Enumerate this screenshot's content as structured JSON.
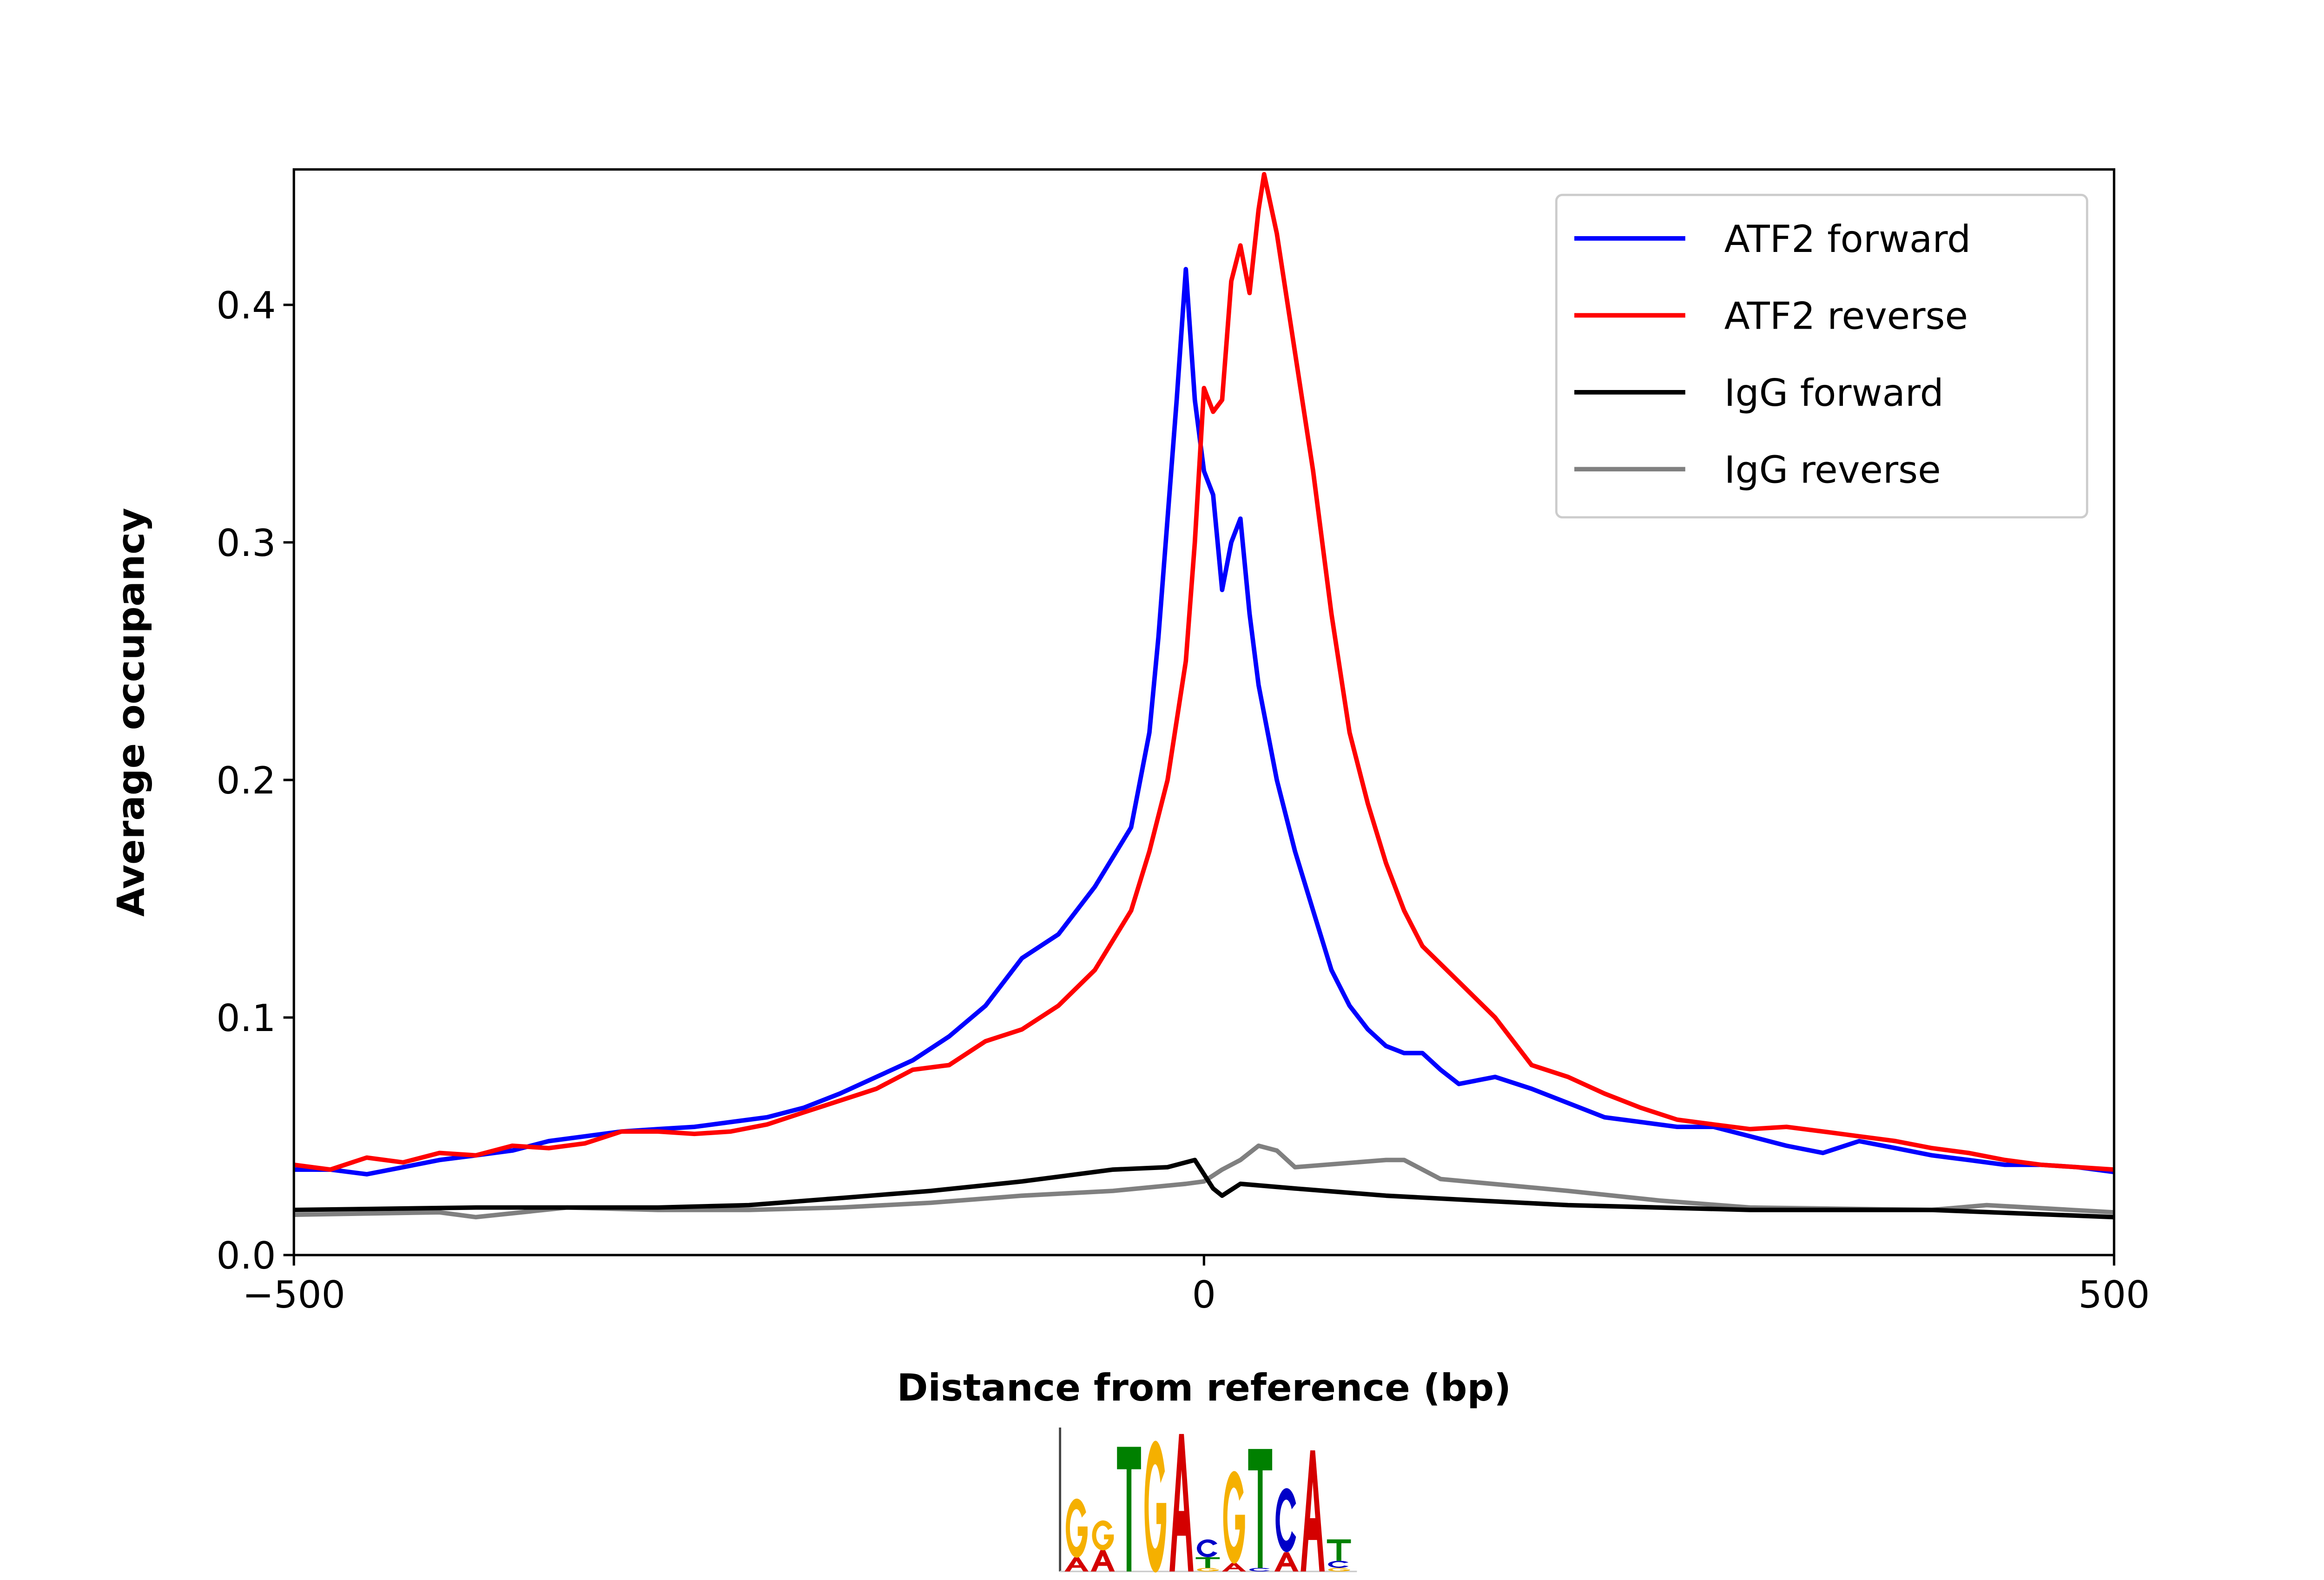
{
  "chart_data": {
    "type": "line",
    "title": "",
    "xlabel": "Distance from reference (bp)",
    "ylabel": "Average occupancy",
    "xlim": [
      -500,
      500
    ],
    "ylim": [
      0,
      0.457
    ],
    "xticks": [
      -500,
      0,
      500
    ],
    "xtick_labels": [
      "−500",
      "0",
      "500"
    ],
    "yticks": [
      0.0,
      0.1,
      0.2,
      0.3,
      0.4
    ],
    "ytick_labels": [
      "0.0",
      "0.1",
      "0.2",
      "0.3",
      "0.4"
    ],
    "grid": false,
    "legend_position": "top-right",
    "series": [
      {
        "name": "ATF2 forward",
        "color": "#0000ff",
        "x": [
          -500,
          -480,
          -460,
          -440,
          -420,
          -400,
          -380,
          -360,
          -340,
          -320,
          -300,
          -280,
          -260,
          -240,
          -220,
          -200,
          -180,
          -160,
          -140,
          -120,
          -100,
          -80,
          -60,
          -40,
          -30,
          -25,
          -20,
          -15,
          -10,
          -5,
          0,
          5,
          10,
          15,
          20,
          25,
          30,
          40,
          50,
          60,
          70,
          80,
          90,
          100,
          110,
          120,
          130,
          140,
          160,
          180,
          200,
          220,
          240,
          260,
          280,
          300,
          320,
          340,
          360,
          380,
          400,
          420,
          440,
          460,
          480,
          500
        ],
        "y": [
          0.036,
          0.036,
          0.034,
          0.037,
          0.04,
          0.042,
          0.044,
          0.048,
          0.05,
          0.052,
          0.053,
          0.054,
          0.056,
          0.058,
          0.062,
          0.068,
          0.075,
          0.082,
          0.092,
          0.105,
          0.125,
          0.135,
          0.155,
          0.18,
          0.22,
          0.26,
          0.31,
          0.36,
          0.415,
          0.36,
          0.33,
          0.32,
          0.28,
          0.3,
          0.31,
          0.27,
          0.24,
          0.2,
          0.17,
          0.145,
          0.12,
          0.105,
          0.095,
          0.088,
          0.085,
          0.085,
          0.078,
          0.072,
          0.075,
          0.07,
          0.064,
          0.058,
          0.056,
          0.054,
          0.054,
          0.05,
          0.046,
          0.043,
          0.048,
          0.045,
          0.042,
          0.04,
          0.038,
          0.038,
          0.037,
          0.035
        ]
      },
      {
        "name": "ATF2 reverse",
        "color": "#ff0000",
        "x": [
          -500,
          -480,
          -460,
          -440,
          -420,
          -400,
          -380,
          -360,
          -340,
          -320,
          -300,
          -280,
          -260,
          -240,
          -220,
          -200,
          -180,
          -160,
          -140,
          -120,
          -100,
          -80,
          -60,
          -40,
          -30,
          -20,
          -10,
          -5,
          0,
          5,
          10,
          15,
          20,
          25,
          30,
          33,
          40,
          50,
          60,
          70,
          80,
          90,
          100,
          110,
          120,
          140,
          160,
          180,
          200,
          220,
          240,
          260,
          280,
          300,
          320,
          340,
          360,
          380,
          400,
          420,
          440,
          460,
          480,
          500
        ],
        "y": [
          0.038,
          0.036,
          0.041,
          0.039,
          0.043,
          0.042,
          0.046,
          0.045,
          0.047,
          0.052,
          0.052,
          0.051,
          0.052,
          0.055,
          0.06,
          0.065,
          0.07,
          0.078,
          0.08,
          0.09,
          0.095,
          0.105,
          0.12,
          0.145,
          0.17,
          0.2,
          0.25,
          0.3,
          0.365,
          0.355,
          0.36,
          0.41,
          0.425,
          0.405,
          0.44,
          0.455,
          0.43,
          0.38,
          0.33,
          0.27,
          0.22,
          0.19,
          0.165,
          0.145,
          0.13,
          0.115,
          0.1,
          0.08,
          0.075,
          0.068,
          0.062,
          0.057,
          0.055,
          0.053,
          0.054,
          0.052,
          0.05,
          0.048,
          0.045,
          0.043,
          0.04,
          0.038,
          0.037,
          0.036
        ]
      },
      {
        "name": "IgG forward",
        "color": "#000000",
        "x": [
          -500,
          -400,
          -300,
          -250,
          -200,
          -150,
          -100,
          -50,
          -20,
          -5,
          5,
          10,
          20,
          50,
          100,
          150,
          200,
          300,
          400,
          500
        ],
        "y": [
          0.019,
          0.02,
          0.02,
          0.021,
          0.024,
          0.027,
          0.031,
          0.036,
          0.037,
          0.04,
          0.028,
          0.025,
          0.03,
          0.028,
          0.025,
          0.023,
          0.021,
          0.019,
          0.019,
          0.016
        ]
      },
      {
        "name": "IgG reverse",
        "color": "#808080",
        "x": [
          -500,
          -420,
          -400,
          -350,
          -300,
          -250,
          -200,
          -150,
          -100,
          -50,
          -10,
          0,
          10,
          20,
          30,
          40,
          50,
          100,
          110,
          130,
          200,
          250,
          300,
          400,
          430,
          500
        ],
        "y": [
          0.017,
          0.018,
          0.016,
          0.02,
          0.019,
          0.019,
          0.02,
          0.022,
          0.025,
          0.027,
          0.03,
          0.031,
          0.036,
          0.04,
          0.046,
          0.044,
          0.037,
          0.04,
          0.04,
          0.032,
          0.027,
          0.023,
          0.02,
          0.019,
          0.021,
          0.018
        ]
      }
    ]
  },
  "motif_logo": {
    "colors": {
      "A": "#d40000",
      "C": "#0000c8",
      "G": "#f5b000",
      "T": "#008000"
    },
    "columns": [
      [
        [
          "A",
          0.2
        ],
        [
          "G",
          0.83
        ]
      ],
      [
        [
          "A",
          0.3
        ],
        [
          "G",
          0.42
        ]
      ],
      [
        [
          "T",
          1.75
        ]
      ],
      [
        [
          "G",
          1.85
        ]
      ],
      [
        [
          "A",
          1.93
        ]
      ],
      [
        [
          "G",
          0.05
        ],
        [
          "T",
          0.15
        ],
        [
          "C",
          0.25
        ]
      ],
      [
        [
          "A",
          0.12
        ],
        [
          "G",
          1.3
        ]
      ],
      [
        [
          "C",
          0.05
        ],
        [
          "T",
          1.67
        ]
      ],
      [
        [
          "A",
          0.27
        ],
        [
          "C",
          0.9
        ]
      ],
      [
        [
          "A",
          1.7
        ]
      ],
      [
        [
          "G",
          0.05
        ],
        [
          "C",
          0.1
        ],
        [
          "T",
          0.3
        ]
      ]
    ]
  }
}
